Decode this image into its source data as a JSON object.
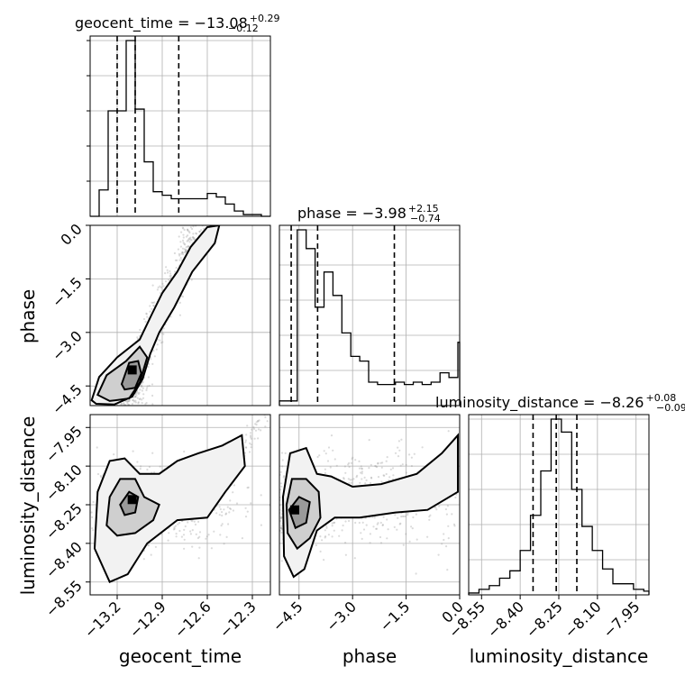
{
  "chart_data": {
    "type": "corner",
    "parameters": [
      "geocent_time",
      "phase",
      "luminosity_distance"
    ],
    "axis_labels": {
      "x": [
        "geocent_time",
        "phase",
        "luminosity_distance"
      ],
      "y": [
        "phase",
        "luminosity_distance"
      ]
    },
    "titles": [
      {
        "parameter": "geocent_time",
        "text": "geocent_time = −13.08",
        "upper": "+0.29",
        "lower": "−0.12"
      },
      {
        "parameter": "phase",
        "text": "phase = −3.98",
        "upper": "+2.15",
        "lower": "−0.74"
      },
      {
        "parameter": "luminosity_distance",
        "text": "luminosity_distance = −8.26",
        "upper": "+0.08",
        "lower": "−0.09"
      }
    ],
    "ranges": {
      "geocent_time": [
        -13.38,
        -12.18
      ],
      "phase": [
        -5.05,
        0.0
      ],
      "luminosity_distance": [
        -8.6,
        -7.9
      ]
    },
    "ticks": {
      "geocent_time": {
        "values": [
          -13.2,
          -12.9,
          -12.6,
          -12.3
        ],
        "labels": [
          "−13.2",
          "−12.9",
          "−12.6",
          "−12.3"
        ]
      },
      "phase": {
        "values": [
          -4.5,
          -3.0,
          -1.5,
          0.0
        ],
        "labels": [
          "−4.5",
          "−3.0",
          "−1.5",
          "0.0"
        ]
      },
      "luminosity_distance": {
        "values": [
          -8.55,
          -8.4,
          -8.25,
          -8.1,
          -7.95
        ],
        "labels": [
          "−8.55",
          "−8.40",
          "−8.25",
          "−8.10",
          "−7.95"
        ]
      }
    },
    "quantiles": {
      "geocent_time": [
        -13.2,
        -13.08,
        -12.79
      ],
      "phase": [
        -4.72,
        -3.98,
        -1.83
      ],
      "luminosity_distance": [
        -8.35,
        -8.26,
        -8.18
      ]
    },
    "histograms": {
      "geocent_time": {
        "edges": [
          -13.38,
          -13.32,
          -13.26,
          -13.2,
          -13.14,
          -13.08,
          -13.02,
          -12.96,
          -12.9,
          -12.84,
          -12.78,
          -12.72,
          -12.66,
          -12.6,
          -12.54,
          -12.48,
          -12.42,
          -12.36,
          -12.3,
          -12.24,
          -12.18
        ],
        "counts": [
          0,
          15,
          60,
          60,
          100,
          61,
          31,
          14,
          12,
          10,
          10,
          10,
          10,
          13,
          11,
          7,
          3,
          1,
          1,
          0
        ]
      },
      "phase": {
        "edges": [
          -5.05,
          -4.8,
          -4.55,
          -4.3,
          -4.05,
          -3.8,
          -3.55,
          -3.3,
          -3.05,
          -2.8,
          -2.55,
          -2.3,
          -2.05,
          -1.8,
          -1.55,
          -1.3,
          -1.05,
          -0.8,
          -0.55,
          -0.3,
          -0.05,
          0.0
        ],
        "counts": [
          2,
          2,
          75,
          67,
          42,
          57,
          47,
          31,
          21,
          19,
          10,
          9,
          9,
          10,
          9,
          10,
          9,
          10,
          14,
          12,
          27
        ]
      },
      "luminosity_distance": {
        "edges": [
          -8.6,
          -8.56,
          -8.52,
          -8.48,
          -8.44,
          -8.4,
          -8.36,
          -8.32,
          -8.28,
          -8.24,
          -8.2,
          -8.16,
          -8.12,
          -8.08,
          -8.04,
          -8.0,
          -7.96,
          -7.92,
          -7.9
        ],
        "counts": [
          1,
          3,
          5,
          9,
          13,
          24,
          43,
          67,
          95,
          88,
          57,
          37,
          24,
          14,
          6,
          6,
          3,
          2
        ]
      }
    },
    "grid": true
  }
}
